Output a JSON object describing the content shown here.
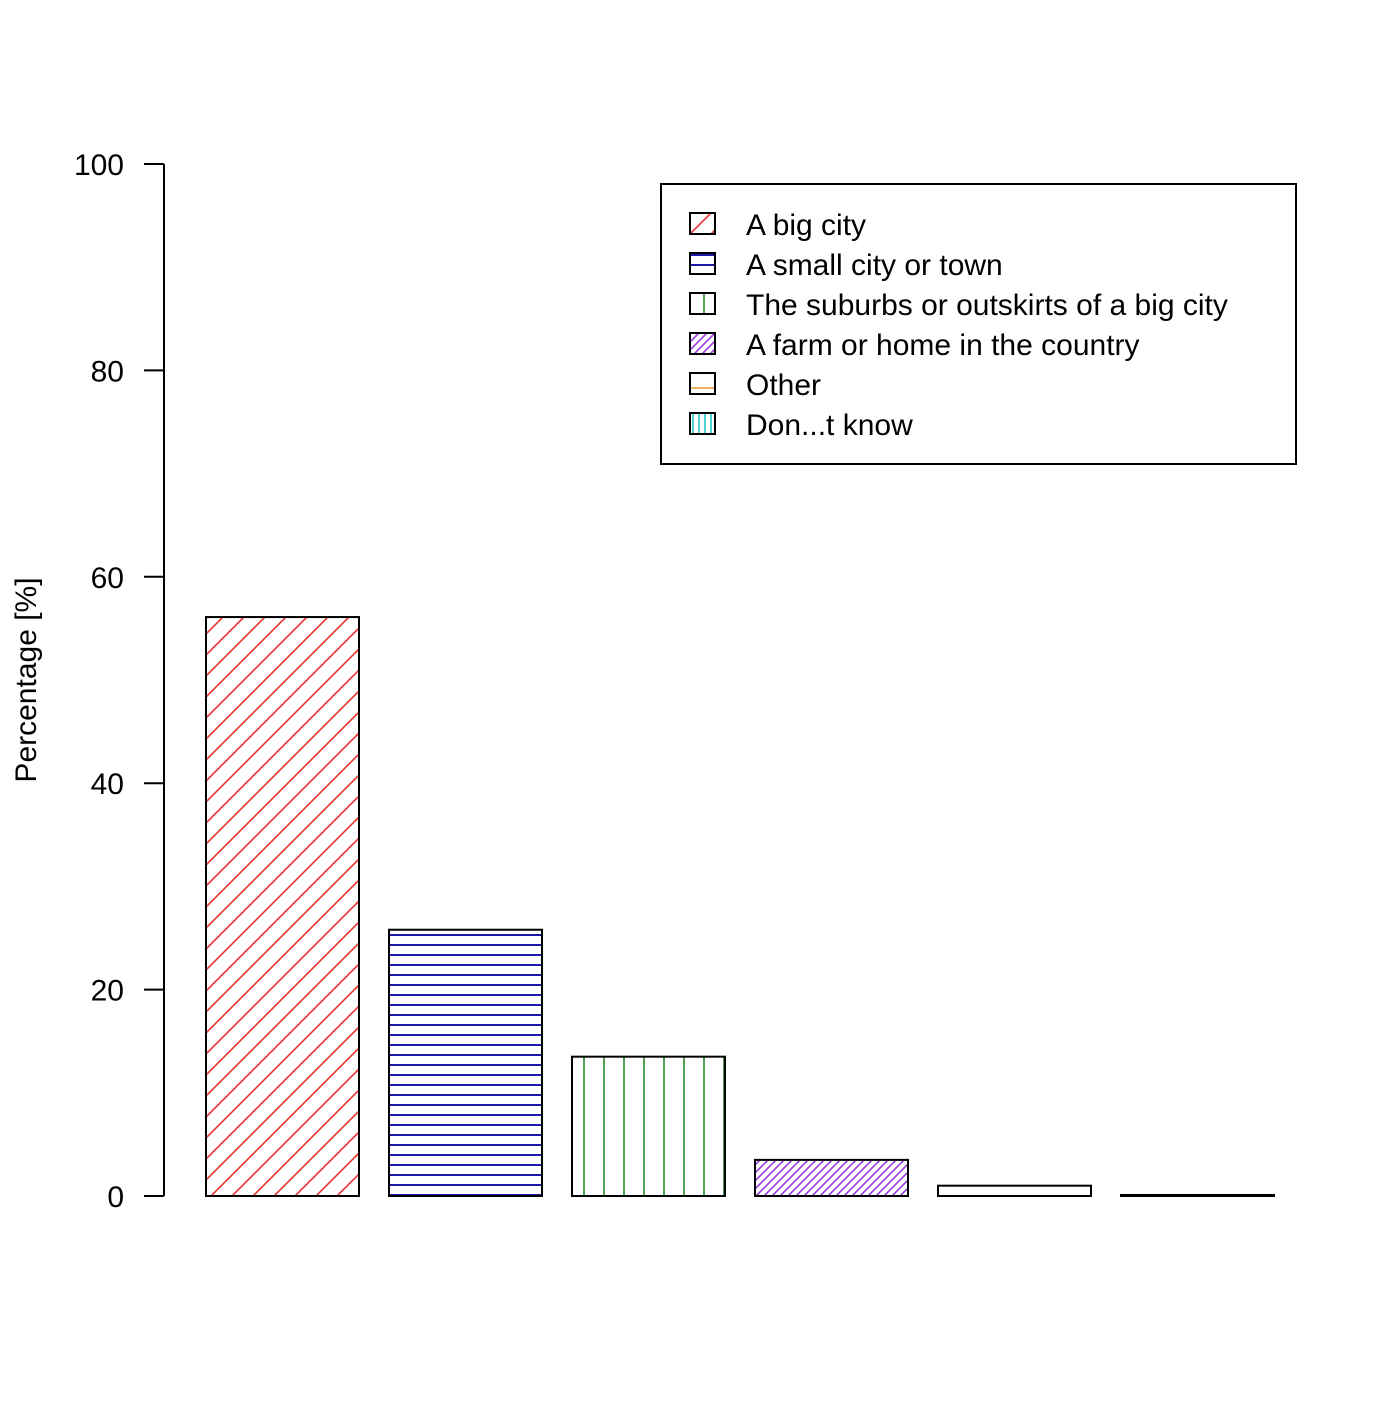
{
  "chart_data": {
    "type": "bar",
    "title": "",
    "xlabel": "",
    "ylabel": "Percentage [%]",
    "ylim": [
      0,
      100
    ],
    "yticks": [
      0,
      20,
      40,
      60,
      80,
      100
    ],
    "grid": false,
    "legend_position": "top-right",
    "categories": [
      "A big city",
      "A small city or town",
      "The suburbs or outskirts of a big city",
      "A farm or home in the country",
      "Other",
      "Don...t know"
    ],
    "values": [
      56.1,
      25.8,
      13.5,
      3.5,
      1.0,
      0.1
    ],
    "series_styles": [
      {
        "color": "#e8322a",
        "pattern": "diagonal"
      },
      {
        "color": "#1a1aa8",
        "pattern": "horizontal"
      },
      {
        "color": "#2a8a2a",
        "pattern": "vertical"
      },
      {
        "color": "#9a3ae0",
        "pattern": "diagonal-dense"
      },
      {
        "color": "#e8962a",
        "pattern": "horizontal-sparse"
      },
      {
        "color": "#20c8c8",
        "pattern": "vertical-dense"
      }
    ]
  }
}
